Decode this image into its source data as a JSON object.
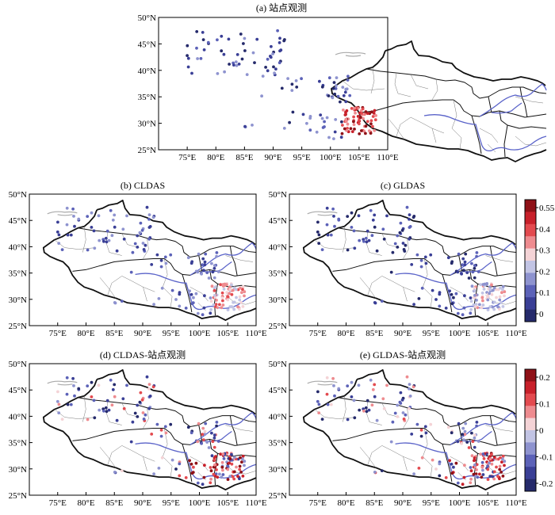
{
  "panels": [
    {
      "id": "a",
      "title": "(a) 站点观测",
      "scale": "main"
    },
    {
      "id": "b",
      "title": "(b) CLDAS",
      "scale": "main"
    },
    {
      "id": "c",
      "title": "(c) GLDAS",
      "scale": "main"
    },
    {
      "id": "d",
      "title": "(d) CLDAS-站点观测",
      "scale": "diff"
    },
    {
      "id": "e",
      "title": "(e) GLDAS-站点观测",
      "scale": "diff"
    }
  ],
  "axes": {
    "x_ticks": [
      "75°E",
      "80°E",
      "85°E",
      "90°E",
      "95°E",
      "100°E",
      "105°E",
      "110°E"
    ],
    "y_ticks": [
      "25°N",
      "30°N",
      "35°N",
      "40°N",
      "45°N",
      "50°N"
    ],
    "lon_range": [
      70,
      110
    ],
    "lat_range": [
      25,
      50
    ]
  },
  "colorbars": {
    "main": {
      "labels": [
        "0.55",
        "0.4",
        "0.3",
        "0.2",
        "0.1",
        "0"
      ],
      "colors": [
        "#252a6b",
        "#3a3f96",
        "#5c62b8",
        "#8e93cf",
        "#c2c4e4",
        "#f4d3d6",
        "#ee8b8f",
        "#e34a4f",
        "#c8202a",
        "#8f1117"
      ]
    },
    "diff": {
      "labels": [
        "0.2",
        "0.1",
        "0",
        "-0.1",
        "-0.2"
      ],
      "colors": [
        "#252a6b",
        "#3a3f96",
        "#5c62b8",
        "#8e93cf",
        "#c2c4e4",
        "#f4d3d6",
        "#ee8b8f",
        "#e34a4f",
        "#c8202a",
        "#8f1117"
      ]
    }
  }
}
